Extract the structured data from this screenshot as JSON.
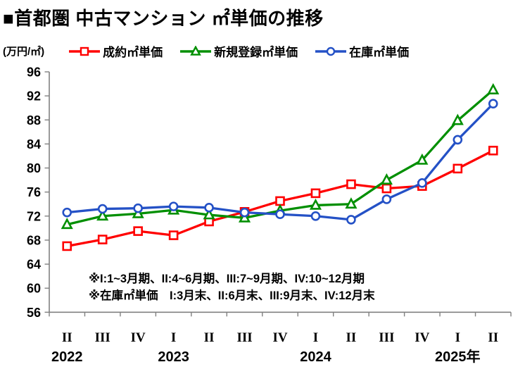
{
  "header": {
    "title": "■首都圏 中古マンション ㎡単価の推移"
  },
  "y_axis": {
    "unit_label": "(万円/㎡)"
  },
  "legend": [
    {
      "key": "contract",
      "label": "成約㎡単価",
      "color": "#ff0000",
      "marker": "square"
    },
    {
      "key": "new-listing",
      "label": "新規登録㎡単価",
      "color": "#008f00",
      "marker": "triangle"
    },
    {
      "key": "stock",
      "label": "在庫㎡単価",
      "color": "#2451c6",
      "marker": "circle"
    }
  ],
  "chart_data": {
    "type": "line",
    "title": "首都圏 中古マンション ㎡単価の推移",
    "ylabel": "万円/㎡",
    "ylim": [
      56,
      96
    ],
    "yticks": [
      56,
      60,
      64,
      68,
      72,
      76,
      80,
      84,
      88,
      92,
      96
    ],
    "grid": false,
    "legend_position": "top",
    "axis_color": "#808080",
    "categories": [
      "2022-II",
      "2022-III",
      "2022-IV",
      "2023-I",
      "2023-II",
      "2023-III",
      "2023-IV",
      "2024-I",
      "2024-II",
      "2024-III",
      "2024-IV",
      "2025-I",
      "2025-II"
    ],
    "quarter_labels": [
      "II",
      "III",
      "IV",
      "I",
      "II",
      "III",
      "IV",
      "I",
      "II",
      "III",
      "IV",
      "I",
      "II"
    ],
    "year_labels": [
      {
        "text": "2022",
        "index": 0
      },
      {
        "text": "2023",
        "index": 3
      },
      {
        "text": "2024",
        "index": 7
      },
      {
        "text": "2025年",
        "index": 11
      }
    ],
    "series": [
      {
        "key": "contract",
        "name": "成約㎡単価",
        "marker": "square",
        "color": "#ff0000",
        "values": [
          67.0,
          68.1,
          69.5,
          68.8,
          71.1,
          72.7,
          74.5,
          75.8,
          77.3,
          76.6,
          77.0,
          79.9,
          82.9
        ]
      },
      {
        "key": "new-listing",
        "name": "新規登録㎡単価",
        "marker": "triangle",
        "color": "#008f00",
        "values": [
          70.6,
          72.0,
          72.4,
          73.0,
          72.2,
          71.7,
          72.9,
          73.8,
          74.0,
          78.0,
          81.3,
          87.9,
          93.0
        ]
      },
      {
        "key": "stock",
        "name": "在庫㎡単価",
        "marker": "circle",
        "color": "#2451c6",
        "values": [
          72.6,
          73.2,
          73.3,
          73.6,
          73.4,
          72.6,
          72.3,
          72.0,
          71.4,
          74.8,
          77.5,
          84.7,
          90.7
        ]
      }
    ],
    "footnotes": [
      "※I:1~3月期、II:4~6月期、III:7~9月期、IV:10~12月期",
      "※在庫㎡単価　I:3月末、II:6月末、III:9月末、IV:12月末"
    ]
  }
}
